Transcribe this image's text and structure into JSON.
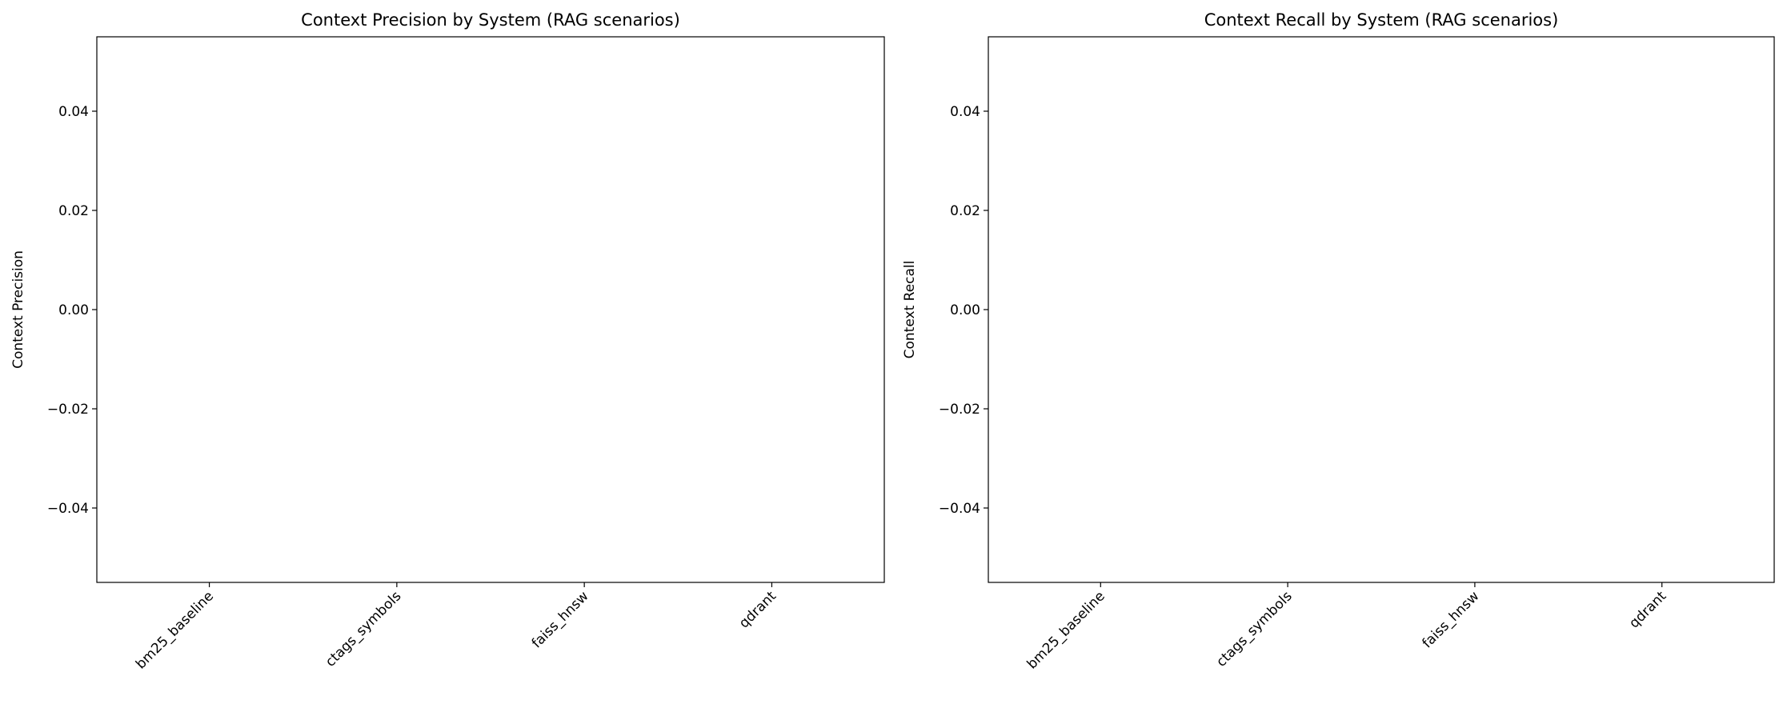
{
  "chart_data": [
    {
      "type": "bar",
      "title": "Context Precision by System (RAG scenarios)",
      "y_label": "Context Precision",
      "categories": [
        "bm25_baseline",
        "ctags_symbols",
        "faiss_hnsw",
        "qdrant"
      ],
      "values": [
        0,
        0,
        0,
        0
      ],
      "color": "#1f77b4",
      "ylim": [
        -0.055,
        0.055
      ],
      "yticks": [
        {
          "value": -0.04,
          "label": "−0.04"
        },
        {
          "value": -0.02,
          "label": "−0.02"
        },
        {
          "value": 0,
          "label": "0.00"
        },
        0.02,
        0.04
      ]
    },
    {
      "type": "bar",
      "title": "Context Recall by System (RAG scenarios)",
      "y_label": "Context Recall",
      "categories": [
        "bm25_baseline",
        "ctags_symbols",
        "faiss_hnsw",
        "qdrant"
      ],
      "values": [
        0,
        0,
        0,
        0
      ],
      "color": "#1f77b4",
      "ylim": [
        -0.055,
        0.055
      ],
      "yticks": [
        {
          "value": -0.04,
          "label": "−0.04"
        },
        {
          "value": -0.02,
          "label": "−0.02"
        },
        {
          "value": 0,
          "label": "0.00"
        },
        0.02,
        0.04
      ]
    }
  ]
}
